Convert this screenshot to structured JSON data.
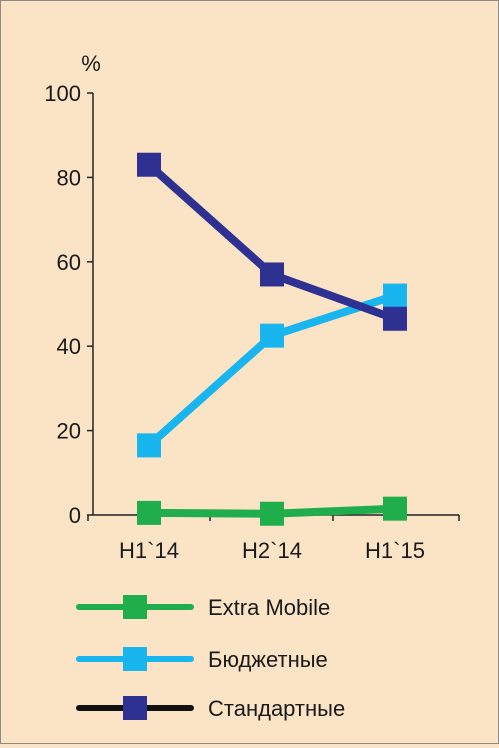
{
  "colors": {
    "background": "#fbe3c6",
    "axis": "#222222",
    "extra_mobile_line": "#1fae4b",
    "extra_mobile_marker": "#1fae4b",
    "budget_line": "#19b5ef",
    "budget_marker": "#19b5ef",
    "standard_line": "#2e3192",
    "standard_marker": "#2e3192",
    "standard_legend_line": "#111111"
  },
  "chart_data": {
    "type": "line",
    "title": "",
    "xlabel": "",
    "ylabel": "%",
    "categories": [
      "H1`14",
      "H2`14",
      "H1`15"
    ],
    "ylim": [
      0,
      100
    ],
    "yticks": [
      "0",
      "20",
      "40",
      "60",
      "80",
      "100"
    ],
    "grid": false,
    "legend_position": "bottom",
    "series": [
      {
        "name": "Extra Mobile",
        "values": [
          0.5,
          0.3,
          1.5
        ]
      },
      {
        "name": "Бюджетные",
        "values": [
          16.5,
          42.5,
          52
        ]
      },
      {
        "name": "Стандартные",
        "values": [
          83,
          57,
          46.5
        ]
      }
    ]
  }
}
